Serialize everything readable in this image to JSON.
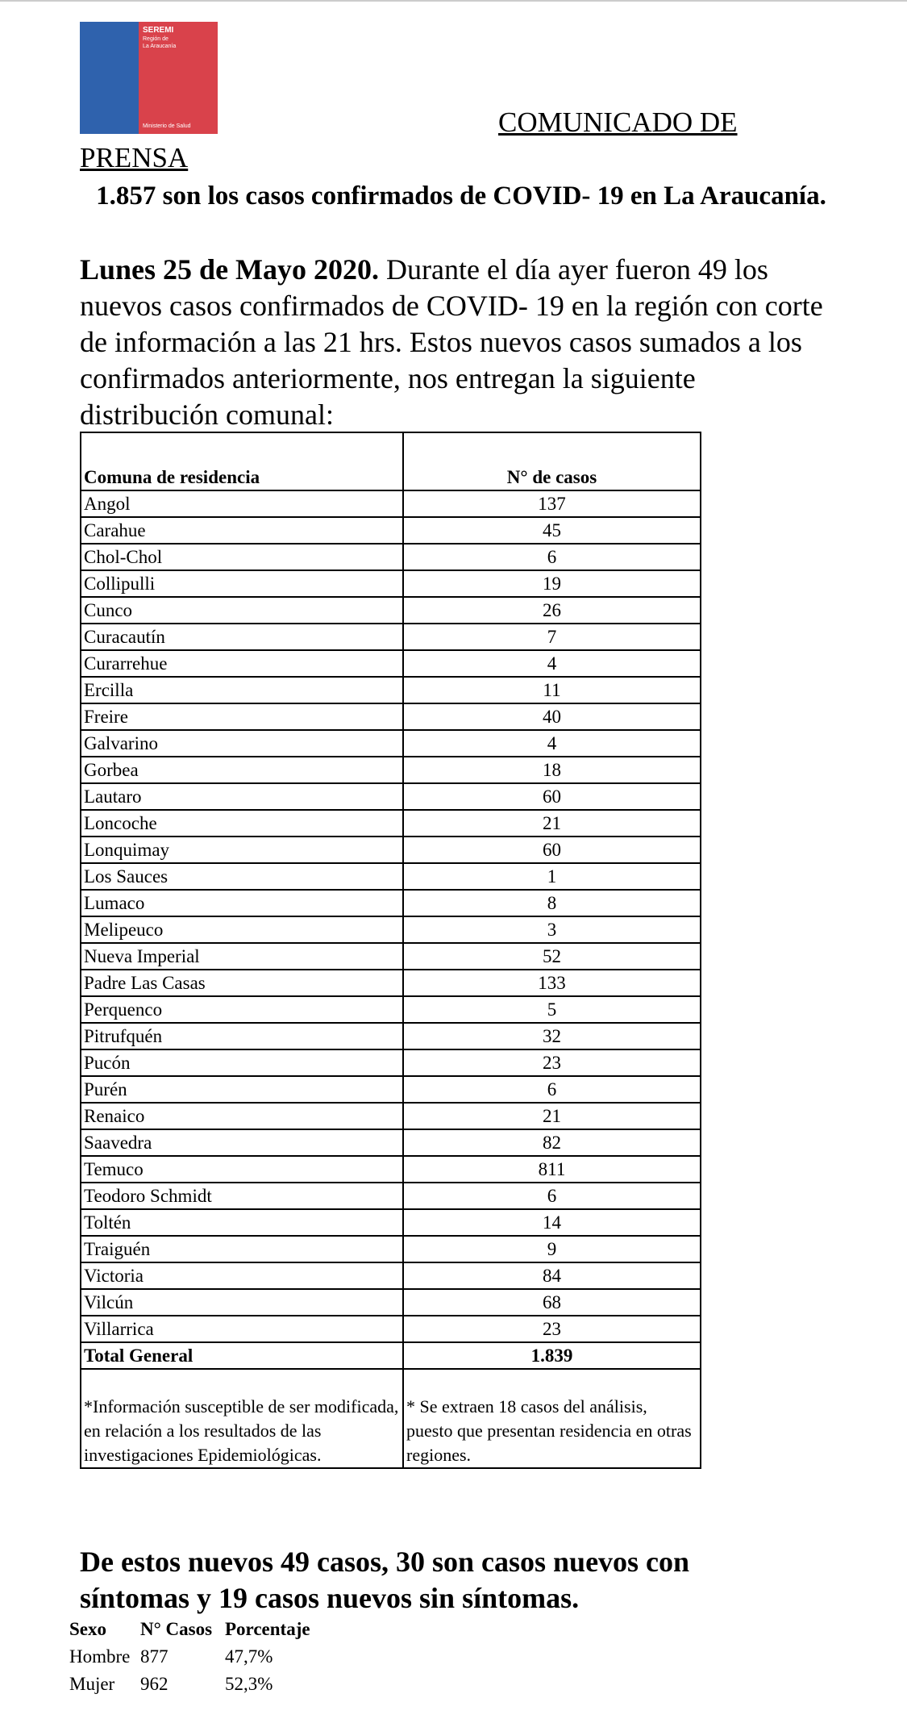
{
  "logo": {
    "org": "SEREMI",
    "region": [
      "Región de",
      "La Araucanía"
    ],
    "ministry": "Ministerio de Salud"
  },
  "heading": "COMUNICADO DE PRENSA",
  "title": "1.857 son los casos confirmados de COVID- 19 en La Araucanía.",
  "lead": "Lunes 25 de Mayo 2020.",
  "body": "Durante el día ayer fueron 49 los nuevos casos confirmados de COVID- 19 en la región con corte de información a las 21 hrs. Estos nuevos casos sumados a los confirmados anteriormente, nos entregan la siguiente distribución comunal:",
  "table": {
    "header": [
      "Comuna de residencia",
      "N° de casos"
    ],
    "rows": [
      [
        "Angol",
        "137"
      ],
      [
        "Carahue",
        "45"
      ],
      [
        "Chol-Chol",
        "6"
      ],
      [
        "Collipulli",
        "19"
      ],
      [
        "Cunco",
        "26"
      ],
      [
        "Curacautín",
        "7"
      ],
      [
        "Curarrehue",
        "4"
      ],
      [
        "Ercilla",
        "11"
      ],
      [
        "Freire",
        "40"
      ],
      [
        "Galvarino",
        "4"
      ],
      [
        "Gorbea",
        "18"
      ],
      [
        "Lautaro",
        "60"
      ],
      [
        "Loncoche",
        "21"
      ],
      [
        "Lonquimay",
        "60"
      ],
      [
        "Los Sauces",
        "1"
      ],
      [
        "Lumaco",
        "8"
      ],
      [
        "Melipeuco",
        "3"
      ],
      [
        "Nueva Imperial",
        "52"
      ],
      [
        "Padre Las Casas",
        "133"
      ],
      [
        "Perquenco",
        "5"
      ],
      [
        "Pitrufquén",
        "32"
      ],
      [
        "Pucón",
        "23"
      ],
      [
        "Purén",
        "6"
      ],
      [
        "Renaico",
        "21"
      ],
      [
        "Saavedra",
        "82"
      ],
      [
        "Temuco",
        "811"
      ],
      [
        "Teodoro Schmidt",
        "6"
      ],
      [
        "Toltén",
        "14"
      ],
      [
        "Traiguén",
        "9"
      ],
      [
        "Victoria",
        "84"
      ],
      [
        "Vilcún",
        "68"
      ],
      [
        "Villarrica",
        "23"
      ]
    ],
    "total": [
      "Total General",
      "1.839"
    ],
    "notes": [
      "*Información susceptible de ser modificada, en relación a los resultados de las investigaciones Epidemiológicas.",
      "* Se extraen 18 casos del análisis, puesto que presentan residencia en otras regiones."
    ]
  },
  "summary": "De estos nuevos 49 casos, 30 son casos nuevos con síntomas y 19 casos nuevos sin síntomas.",
  "sex_table": {
    "header": [
      "Sexo",
      "N° Casos",
      "Porcentaje"
    ],
    "rows": [
      [
        "Hombre",
        "877",
        "47,7%"
      ],
      [
        "Mujer",
        "962",
        "52,3%"
      ]
    ]
  }
}
